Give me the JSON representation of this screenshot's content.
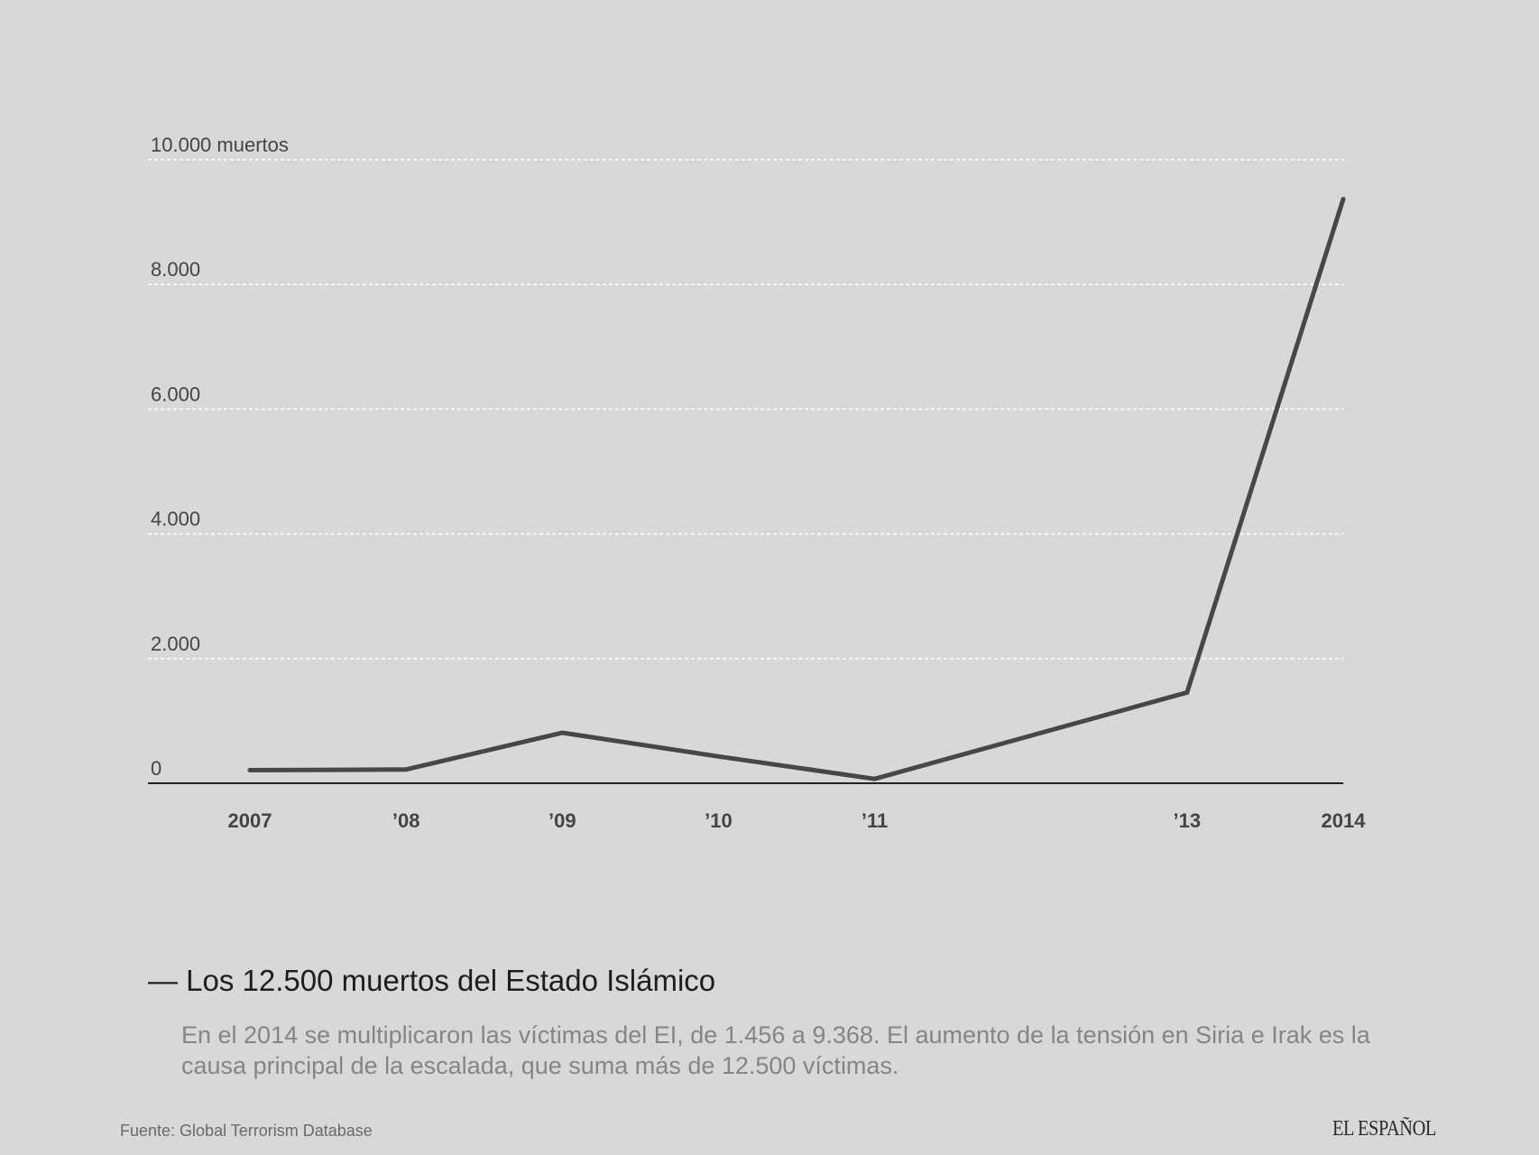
{
  "chart_data": {
    "type": "line",
    "x": [
      2007,
      2008,
      2009,
      2010,
      2011,
      2013,
      2014
    ],
    "values": [
      210,
      220,
      810,
      430,
      70,
      1456,
      9368
    ],
    "ylim": [
      0,
      10000
    ],
    "xlim": [
      2007,
      2014
    ],
    "yticks": [
      0,
      2000,
      4000,
      6000,
      8000,
      10000
    ],
    "ytick_labels": [
      "0",
      "2.000",
      "4.000",
      "6.000",
      "8.000",
      "10.000 muertos"
    ],
    "xticks": [
      2007,
      2008,
      2009,
      2010,
      2011,
      2013,
      2014
    ],
    "xtick_labels": [
      "2007",
      "’08",
      "’09",
      "’10",
      "’11",
      "’13",
      "2014"
    ],
    "grid": "horizontal dashed",
    "line_color": "#474747",
    "title": "— Los 12.500 muertos del Estado Islámico",
    "subtitle": "En el 2014 se multiplicaron las víctimas del EI, de 1.456 a 9.368. El aumento de la tensión en Siria e Irak es la causa principal de la escalada, que suma más de 12.500 víctimas.",
    "source": "Fuente: Global Terrorism Database"
  },
  "logo": "EL ESPAÑOL"
}
